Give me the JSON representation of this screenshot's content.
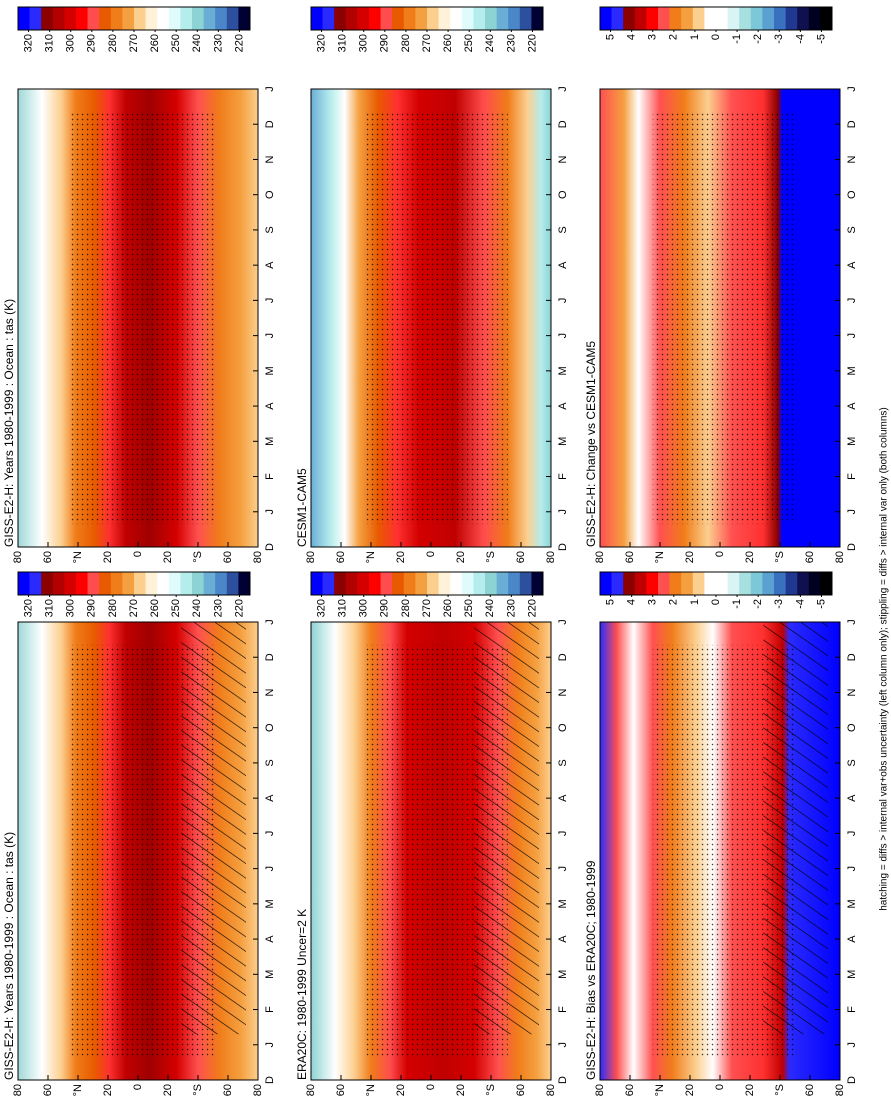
{
  "chart_data": [
    {
      "type": "contour",
      "title": "GISS-E2-H: Years 1980-1999 : Ocean : tas (K)",
      "categories": [
        "D",
        "J",
        "F",
        "M",
        "A",
        "M",
        "J",
        "J",
        "A",
        "S",
        "O",
        "N",
        "D",
        "J"
      ],
      "lat_labels": [
        "80",
        "60",
        "°N",
        "20",
        "0",
        "20",
        "°S",
        "60",
        "80"
      ],
      "hatching": true,
      "colorbar": {
        "ticks": [
          320,
          310,
          300,
          290,
          280,
          270,
          260,
          250,
          240,
          230,
          220
        ],
        "colors": [
          "#0000ff",
          "#2a2aff",
          "#8b0000",
          "#b30000",
          "#d40000",
          "#ff0000",
          "#ff4d4d",
          "#e85a00",
          "#f07d1a",
          "#f5a040",
          "#fccf8f",
          "#fff2d9",
          "#ffffff",
          "#e0fbfb",
          "#b5ecec",
          "#8dd3d3",
          "#6aaed6",
          "#4a86c8",
          "#2c4f9e",
          "#000033"
        ]
      }
    },
    {
      "type": "contour",
      "title": "GISS-E2-H: Years 1980-1999 : Ocean : tas (K)",
      "categories": [
        "D",
        "J",
        "F",
        "M",
        "A",
        "M",
        "J",
        "J",
        "A",
        "S",
        "O",
        "N",
        "D",
        "J"
      ],
      "lat_labels": [
        "80",
        "60",
        "°N",
        "20",
        "0",
        "20",
        "°S",
        "60",
        "80"
      ],
      "hatching": false,
      "colorbar": {
        "ticks": [
          320,
          310,
          300,
          290,
          280,
          270,
          260,
          250,
          240,
          230,
          220
        ],
        "colors": [
          "#0000ff",
          "#2a2aff",
          "#8b0000",
          "#b30000",
          "#d40000",
          "#ff0000",
          "#ff4d4d",
          "#e85a00",
          "#f07d1a",
          "#f5a040",
          "#fccf8f",
          "#fff2d9",
          "#ffffff",
          "#e0fbfb",
          "#b5ecec",
          "#8dd3d3",
          "#6aaed6",
          "#4a86c8",
          "#2c4f9e",
          "#000033"
        ]
      }
    },
    {
      "type": "contour",
      "title": "ERA20C: 1980-1999 Uncer=2 K",
      "categories": [
        "D",
        "J",
        "F",
        "M",
        "A",
        "M",
        "J",
        "J",
        "A",
        "S",
        "O",
        "N",
        "D",
        "J"
      ],
      "lat_labels": [
        "80",
        "60",
        "°N",
        "20",
        "0",
        "20",
        "°S",
        "60",
        "80"
      ],
      "hatching": true,
      "colorbar": {
        "ticks": [
          320,
          310,
          300,
          290,
          280,
          270,
          260,
          250,
          240,
          230,
          220
        ],
        "colors": [
          "#0000ff",
          "#2a2aff",
          "#8b0000",
          "#b30000",
          "#d40000",
          "#ff0000",
          "#ff4d4d",
          "#e85a00",
          "#f07d1a",
          "#f5a040",
          "#fccf8f",
          "#fff2d9",
          "#ffffff",
          "#e0fbfb",
          "#b5ecec",
          "#8dd3d3",
          "#6aaed6",
          "#4a86c8",
          "#2c4f9e",
          "#000033"
        ]
      }
    },
    {
      "type": "contour",
      "title": "CESM1-CAM5",
      "categories": [
        "D",
        "J",
        "F",
        "M",
        "A",
        "M",
        "J",
        "J",
        "A",
        "S",
        "O",
        "N",
        "D",
        "J"
      ],
      "lat_labels": [
        "80",
        "60",
        "°N",
        "20",
        "0",
        "20",
        "°S",
        "60",
        "80"
      ],
      "hatching": false,
      "colorbar": {
        "ticks": [
          320,
          310,
          300,
          290,
          280,
          270,
          260,
          250,
          240,
          230,
          220
        ],
        "colors": [
          "#0000ff",
          "#2a2aff",
          "#8b0000",
          "#b30000",
          "#d40000",
          "#ff0000",
          "#ff4d4d",
          "#e85a00",
          "#f07d1a",
          "#f5a040",
          "#fccf8f",
          "#fff2d9",
          "#ffffff",
          "#e0fbfb",
          "#b5ecec",
          "#8dd3d3",
          "#6aaed6",
          "#4a86c8",
          "#2c4f9e",
          "#000033"
        ]
      }
    },
    {
      "type": "contour",
      "title": "GISS-E2-H: Bias vs ERA20C; 1980-1999",
      "categories": [
        "D",
        "J",
        "F",
        "M",
        "A",
        "M",
        "J",
        "J",
        "A",
        "S",
        "O",
        "N",
        "D",
        "J"
      ],
      "lat_labels": [
        "80",
        "60",
        "°N",
        "20",
        "0",
        "20",
        "°S",
        "60",
        "80"
      ],
      "hatching": true,
      "colorbar": {
        "ticks": [
          5,
          4,
          3,
          2,
          1,
          0,
          -1,
          -2,
          -3,
          -4,
          -5
        ],
        "colors": [
          "#0000ff",
          "#2a2aff",
          "#8b0000",
          "#c00000",
          "#ff0000",
          "#ff5050",
          "#f07d1a",
          "#f5a040",
          "#fccf8f",
          "#ffffff",
          "#ffffff",
          "#d8f4f4",
          "#a8e0e0",
          "#7cc8d8",
          "#5aa0d0",
          "#3a70c0",
          "#203890",
          "#101050",
          "#000020",
          "#000000"
        ]
      }
    },
    {
      "type": "contour",
      "title": "GISS-E2-H: Change vs CESM1-CAM5",
      "categories": [
        "D",
        "J",
        "F",
        "M",
        "A",
        "M",
        "J",
        "J",
        "A",
        "S",
        "O",
        "N",
        "D",
        "J"
      ],
      "lat_labels": [
        "80",
        "60",
        "°N",
        "20",
        "0",
        "20",
        "°S",
        "60",
        "80"
      ],
      "hatching": false,
      "colorbar": {
        "ticks": [
          5,
          4,
          3,
          2,
          1,
          0,
          -1,
          -2,
          -3,
          -4,
          -5
        ],
        "colors": [
          "#0000ff",
          "#2a2aff",
          "#8b0000",
          "#c00000",
          "#ff0000",
          "#ff5050",
          "#f07d1a",
          "#f5a040",
          "#fccf8f",
          "#ffffff",
          "#ffffff",
          "#d8f4f4",
          "#a8e0e0",
          "#7cc8d8",
          "#5aa0d0",
          "#3a70c0",
          "#203890",
          "#101050",
          "#000020",
          "#000000"
        ]
      }
    }
  ],
  "note": "hatching = diffs > internal var+obs uncertainty (left column only); stippling = diffs > internal var only (both columns)"
}
